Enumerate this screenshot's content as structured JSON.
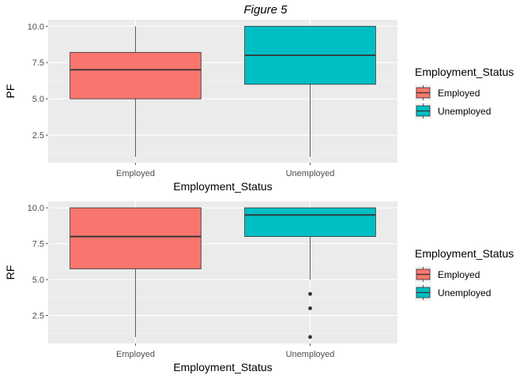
{
  "figure": {
    "title": "Figure 5"
  },
  "chart_data": [
    {
      "type": "boxplot",
      "xlabel": "Employment_Status",
      "ylabel": "PF",
      "categories": [
        "Employed",
        "Unemployed"
      ],
      "ylim": [
        0.6,
        10.45
      ],
      "yticks": [
        2.5,
        5.0,
        7.5,
        10.0
      ],
      "ytick_labels": [
        "2.5",
        "5.0",
        "7.5",
        "10.0"
      ],
      "grid": true,
      "legend": {
        "title": "Employment_Status",
        "position": "right",
        "entries": [
          "Employed",
          "Unemployed"
        ]
      },
      "boxes": [
        {
          "category": "Employed",
          "min": 1.0,
          "q1": 5.0,
          "median": 7.0,
          "q3": 8.2,
          "max": 10.0,
          "outliers": [],
          "color": "#F8766D"
        },
        {
          "category": "Unemployed",
          "min": 1.0,
          "q1": 6.0,
          "median": 8.0,
          "q3": 10.0,
          "max": 10.0,
          "outliers": [],
          "color": "#00BFC4"
        }
      ]
    },
    {
      "type": "boxplot",
      "xlabel": "Employment_Status",
      "ylabel": "RF",
      "categories": [
        "Employed",
        "Unemployed"
      ],
      "ylim": [
        0.55,
        10.45
      ],
      "yticks": [
        2.5,
        5.0,
        7.5,
        10.0
      ],
      "ytick_labels": [
        "2.5",
        "5.0",
        "7.5",
        "10.0"
      ],
      "grid": true,
      "legend": {
        "title": "Employment_Status",
        "position": "right",
        "entries": [
          "Employed",
          "Unemployed"
        ]
      },
      "boxes": [
        {
          "category": "Employed",
          "min": 1.0,
          "q1": 5.75,
          "median": 8.0,
          "q3": 10.0,
          "max": 10.0,
          "outliers": [],
          "color": "#F8766D"
        },
        {
          "category": "Unemployed",
          "min": 5.0,
          "q1": 8.0,
          "median": 9.5,
          "q3": 10.0,
          "max": 10.0,
          "outliers": [
            4.0,
            3.0,
            1.0
          ],
          "color": "#00BFC4"
        }
      ]
    }
  ]
}
